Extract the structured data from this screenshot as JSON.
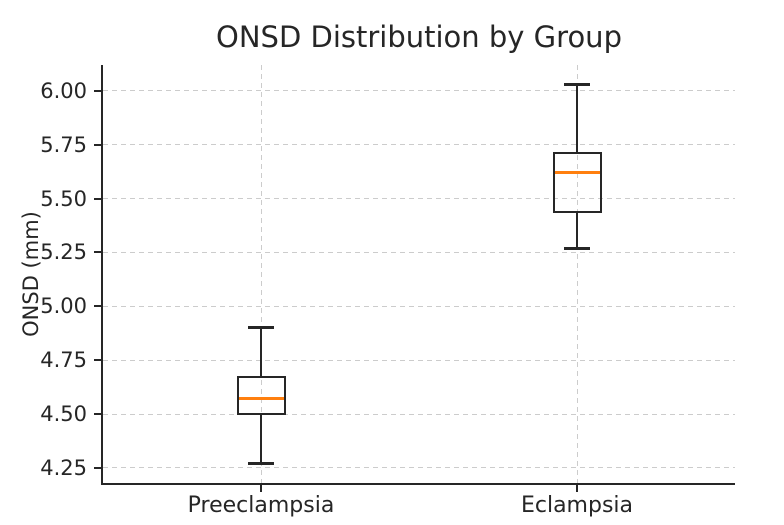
{
  "chart_data": {
    "type": "boxplot",
    "title": "ONSD Distribution by Group",
    "xlabel": "",
    "ylabel": "ONSD (mm)",
    "categories": [
      "Preeclampsia",
      "Eclampsia"
    ],
    "series": [
      {
        "name": "Preeclampsia",
        "whisker_low": 4.27,
        "q1": 4.5,
        "median": 4.57,
        "q3": 4.67,
        "whisker_high": 4.9
      },
      {
        "name": "Eclampsia",
        "whisker_low": 5.27,
        "q1": 5.44,
        "median": 5.62,
        "q3": 5.71,
        "whisker_high": 6.03
      }
    ],
    "yticks": [
      4.25,
      4.5,
      4.75,
      5.0,
      5.25,
      5.5,
      5.75,
      6.0
    ],
    "ytick_labels": [
      "4.25",
      "4.50",
      "4.75",
      "5.00",
      "5.25",
      "5.50",
      "5.75",
      "6.00"
    ],
    "ylim": [
      4.18,
      6.12
    ],
    "grid": true,
    "grid_style": "dashed",
    "legend": "none",
    "colors": {
      "box_edge": "#262626",
      "median": "#ff7f0e",
      "grid": "#cccccc",
      "spine": "#262626",
      "text": "#262626",
      "background": "#ffffff"
    }
  }
}
